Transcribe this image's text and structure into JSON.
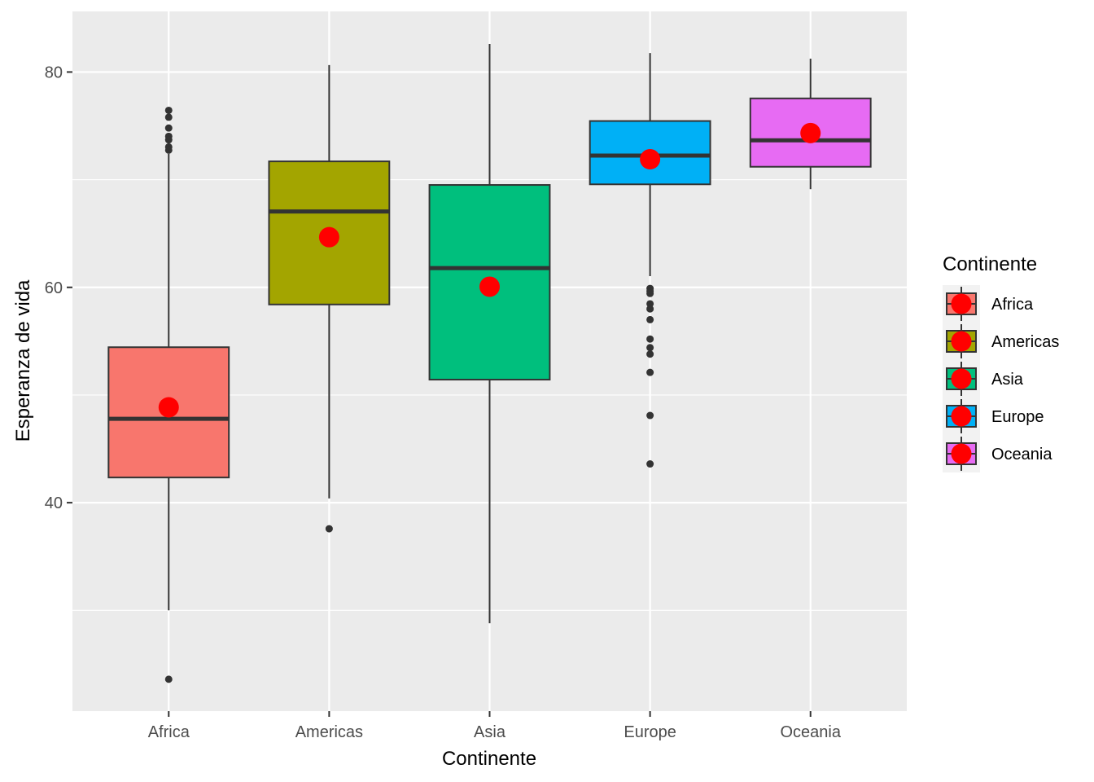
{
  "chart_data": {
    "type": "boxplot",
    "title": "",
    "xlabel": "Continente",
    "ylabel": "Esperanza de vida",
    "ylim": [
      20.64,
      85.63
    ],
    "y_major_ticks": [
      40,
      60,
      80
    ],
    "y_minor_ticks": [
      30,
      50,
      70
    ],
    "grid": true,
    "categories": [
      "Africa",
      "Americas",
      "Asia",
      "Europe",
      "Oceania"
    ],
    "series": [
      {
        "name": "Africa",
        "color": "#F8766D",
        "whisker_low": 30.0,
        "q1": 42.34,
        "median": 47.79,
        "q3": 54.44,
        "whisker_high": 72.4,
        "mean": 48.86,
        "outliers": [
          76.44,
          75.8,
          74.8,
          74.03,
          73.7,
          73.04,
          72.74,
          23.6
        ]
      },
      {
        "name": "Americas",
        "color": "#A3A500",
        "whisker_low": 40.4,
        "q1": 58.41,
        "median": 67.05,
        "q3": 71.7,
        "whisker_high": 80.65,
        "mean": 64.66,
        "outliers": [
          37.58
        ]
      },
      {
        "name": "Asia",
        "color": "#00BF7D",
        "whisker_low": 28.8,
        "q1": 51.43,
        "median": 61.79,
        "q3": 69.51,
        "whisker_high": 82.6,
        "mean": 60.06,
        "outliers": []
      },
      {
        "name": "Europe",
        "color": "#00B0F6",
        "whisker_low": 61.04,
        "q1": 69.57,
        "median": 72.24,
        "q3": 75.45,
        "whisker_high": 81.76,
        "mean": 71.9,
        "outliers": [
          59.9,
          59.66,
          59.43,
          58.47,
          58.0,
          57.0,
          55.2,
          54.4,
          53.8,
          52.1,
          48.1,
          43.6
        ]
      },
      {
        "name": "Oceania",
        "color": "#E76BF3",
        "whisker_low": 69.12,
        "q1": 71.2,
        "median": 73.66,
        "q3": 77.55,
        "whisker_high": 81.24,
        "mean": 74.33,
        "outliers": []
      }
    ],
    "mean_marker_color": "#FF0000",
    "legend": {
      "title": "Continente",
      "position": "right",
      "entries": [
        "Africa",
        "Americas",
        "Asia",
        "Europe",
        "Oceania"
      ]
    },
    "tick_labels_y": [
      "40",
      "60",
      "80"
    ]
  }
}
